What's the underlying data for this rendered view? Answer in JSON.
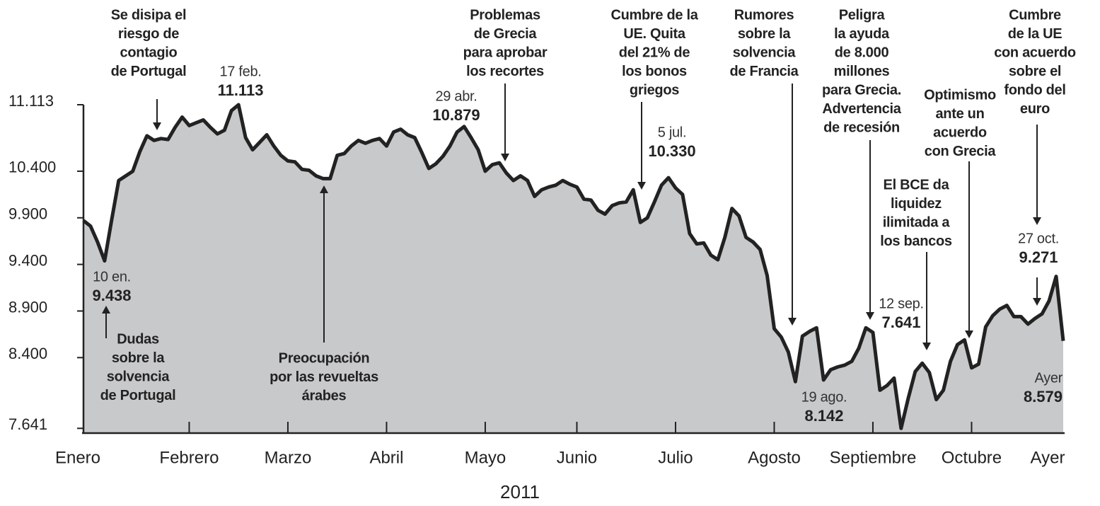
{
  "chart_data": {
    "type": "area",
    "xlabel": "2011",
    "color": "#c8c9cb",
    "line_color": "#222222",
    "ylim": [
      7590,
      11113
    ],
    "yticks": [
      {
        "value": 11113,
        "label": "11.113"
      },
      {
        "value": 10400,
        "label": "10.400"
      },
      {
        "value": 9900,
        "label": "9.900"
      },
      {
        "value": 9400,
        "label": "9.400"
      },
      {
        "value": 8900,
        "label": "8.900"
      },
      {
        "value": 8400,
        "label": "8.400"
      },
      {
        "value": 7641,
        "label": "7.641"
      }
    ],
    "categories": [
      "Enero",
      null,
      null,
      null,
      null,
      null,
      null,
      null,
      null,
      null,
      null,
      null,
      null,
      null,
      null,
      "Febrero",
      null,
      null,
      null,
      null,
      null,
      null,
      null,
      null,
      null,
      null,
      null,
      null,
      null,
      "Marzo",
      null,
      null,
      null,
      null,
      null,
      null,
      null,
      null,
      null,
      null,
      null,
      null,
      null,
      "Abril",
      null,
      null,
      null,
      null,
      null,
      null,
      null,
      null,
      null,
      null,
      null,
      null,
      null,
      "Mayo",
      null,
      null,
      null,
      null,
      null,
      null,
      null,
      null,
      null,
      null,
      null,
      null,
      "Junio",
      null,
      null,
      null,
      null,
      null,
      null,
      null,
      null,
      null,
      null,
      null,
      null,
      null,
      "Julio",
      null,
      null,
      null,
      null,
      null,
      null,
      null,
      null,
      null,
      null,
      null,
      null,
      null,
      "Agosto",
      null,
      null,
      null,
      null,
      null,
      null,
      null,
      null,
      null,
      null,
      null,
      null,
      null,
      "Septiembre",
      null,
      null,
      null,
      null,
      null,
      null,
      null,
      null,
      null,
      null,
      null,
      null,
      null,
      "Octubre",
      null,
      null,
      null,
      null,
      null,
      null,
      null,
      null,
      null,
      null,
      null,
      null,
      "Ayer"
    ],
    "values": [
      9870,
      9810,
      9640,
      9438,
      9880,
      10300,
      10350,
      10400,
      10610,
      10780,
      10730,
      10750,
      10740,
      10870,
      10980,
      10890,
      10920,
      10950,
      10870,
      10800,
      10840,
      11050,
      11113,
      10760,
      10630,
      10710,
      10790,
      10670,
      10570,
      10510,
      10500,
      10420,
      10410,
      10350,
      10320,
      10320,
      10570,
      10590,
      10670,
      10730,
      10700,
      10730,
      10750,
      10670,
      10820,
      10850,
      10790,
      10760,
      10600,
      10430,
      10480,
      10560,
      10670,
      10820,
      10879,
      10760,
      10630,
      10400,
      10470,
      10490,
      10380,
      10300,
      10350,
      10300,
      10130,
      10200,
      10230,
      10250,
      10300,
      10260,
      10230,
      10100,
      10090,
      9980,
      9940,
      10030,
      10060,
      10070,
      10200,
      9850,
      9900,
      10070,
      10250,
      10330,
      10220,
      10150,
      9730,
      9620,
      9630,
      9500,
      9450,
      9690,
      10000,
      9920,
      9690,
      9640,
      9560,
      9280,
      8710,
      8620,
      8460,
      8142,
      8630,
      8680,
      8720,
      8160,
      8270,
      8300,
      8320,
      8360,
      8500,
      8720,
      8670,
      8050,
      8100,
      8180,
      7641,
      7960,
      8250,
      8340,
      8240,
      7950,
      8050,
      8360,
      8540,
      8590,
      8290,
      8330,
      8730,
      8850,
      8920,
      8960,
      8840,
      8840,
      8760,
      8820,
      8870,
      9010,
      9271,
      8579
    ],
    "value_labels": [
      null,
      null,
      null,
      "9.438",
      null,
      null,
      null,
      null,
      null,
      null,
      null,
      null,
      null,
      null,
      null,
      null,
      null,
      null,
      null,
      null,
      null,
      null,
      "11.113",
      null,
      null,
      null,
      null,
      null,
      null,
      null,
      null,
      null,
      null,
      null,
      null,
      null,
      null,
      null,
      null,
      null,
      null,
      null,
      null,
      null,
      null,
      null,
      null,
      null,
      null,
      null,
      null,
      null,
      null,
      null,
      "10.879",
      null,
      null,
      null,
      null,
      null,
      null,
      null,
      null,
      null,
      null,
      null,
      null,
      null,
      null,
      null,
      null,
      null,
      null,
      null,
      null,
      null,
      null,
      null,
      null,
      null,
      null,
      null,
      null,
      "10.330",
      null,
      null,
      null,
      null,
      null,
      null,
      null,
      null,
      null,
      null,
      null,
      null,
      null,
      null,
      null,
      null,
      null,
      "8.142",
      null,
      null,
      null,
      null,
      null,
      null,
      null,
      null,
      null,
      null,
      null,
      null,
      null,
      null,
      "7.641",
      null,
      null,
      null,
      null,
      null,
      null,
      null,
      null,
      null,
      null,
      null,
      null,
      null,
      null,
      null,
      null,
      null,
      null,
      null,
      null,
      null,
      "9.271",
      "8.579"
    ],
    "point_dates": [
      null,
      null,
      null,
      "10 en.",
      null,
      null,
      null,
      null,
      null,
      null,
      null,
      null,
      null,
      null,
      null,
      null,
      null,
      null,
      null,
      null,
      null,
      null,
      "17 feb.",
      null,
      null,
      null,
      null,
      null,
      null,
      null,
      null,
      null,
      null,
      null,
      null,
      null,
      null,
      null,
      null,
      null,
      null,
      null,
      null,
      null,
      null,
      null,
      null,
      null,
      null,
      null,
      null,
      null,
      null,
      null,
      "29 abr.",
      null,
      null,
      null,
      null,
      null,
      null,
      null,
      null,
      null,
      null,
      null,
      null,
      null,
      null,
      null,
      null,
      null,
      null,
      null,
      null,
      null,
      null,
      null,
      null,
      null,
      null,
      null,
      null,
      "5 jul.",
      null,
      null,
      null,
      null,
      null,
      null,
      null,
      null,
      null,
      null,
      null,
      null,
      null,
      null,
      null,
      null,
      null,
      "19 ago.",
      null,
      null,
      null,
      null,
      null,
      null,
      null,
      null,
      null,
      null,
      null,
      null,
      null,
      null,
      "12 sep.",
      null,
      null,
      null,
      null,
      null,
      null,
      null,
      null,
      null,
      null,
      null,
      null,
      null,
      null,
      null,
      null,
      null,
      null,
      null,
      null,
      null,
      "27 oct.",
      "Ayer"
    ],
    "annotations": [
      {
        "lines": [
          "Se disipa el",
          "riesgo de",
          "contagio",
          "de Portugal"
        ]
      },
      {
        "lines": [
          "Problemas",
          "de Grecia",
          "para aprobar",
          "los recortes"
        ]
      },
      {
        "lines": [
          "Cumbre de la",
          "UE. Quita",
          "del 21% de",
          "los bonos",
          "griegos"
        ]
      },
      {
        "lines": [
          "Rumores",
          "sobre la",
          "solvencia",
          "de Francia"
        ]
      },
      {
        "lines": [
          "Peligra",
          "la ayuda",
          "de 8.000",
          "millones",
          "para Grecia.",
          "Advertencia",
          "de recesión"
        ]
      },
      {
        "lines": [
          "Optimismo",
          "ante un",
          "acuerdo",
          "con Grecia"
        ]
      },
      {
        "lines": [
          "Cumbre",
          "de la UE",
          "con acuerdo",
          "sobre el",
          "fondo del",
          "euro"
        ]
      },
      {
        "lines": [
          "El BCE da",
          "liquidez",
          "ilimitada a",
          "los bancos"
        ]
      },
      {
        "lines": [
          "Dudas",
          "sobre la",
          "solvencia",
          "de Portugal"
        ]
      },
      {
        "lines": [
          "Preocupación",
          "por las revueltas",
          "árabes"
        ]
      }
    ]
  }
}
